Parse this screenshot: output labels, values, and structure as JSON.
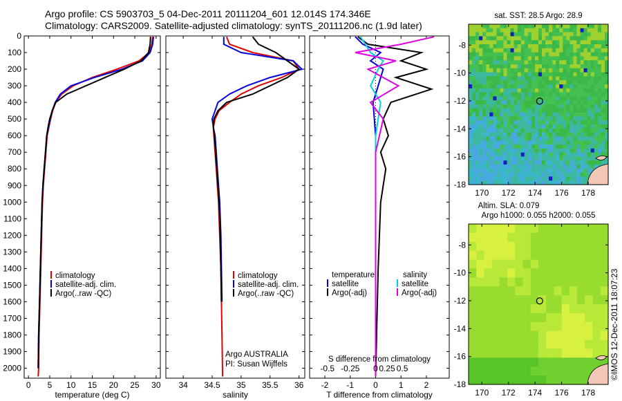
{
  "header": {
    "line1": "Argo profile: CS 5903703_5 04-Dec-2011 20111204_601 12.014S 174.346E",
    "line2": "Climatology: CARS2009. Satellite-adjusted climatology: synTS_20111206.nc (1.9d later)"
  },
  "chart_data": [
    {
      "type": "line",
      "panel": "temperature",
      "xlabel": "temperature (deg C)",
      "xlim": [
        -1,
        31
      ],
      "xticks": [
        0,
        5,
        10,
        15,
        20,
        25,
        30
      ],
      "ylim": [
        0,
        2060
      ],
      "yticks": [
        0,
        100,
        200,
        300,
        400,
        500,
        600,
        700,
        800,
        900,
        1000,
        1100,
        1200,
        1300,
        1400,
        1500,
        1600,
        1700,
        1800,
        1900,
        2000
      ],
      "legend": [
        "climatology",
        "satellite-adj. clim.",
        "Argo(..raw -QC)"
      ],
      "legend_placement": "lower-center",
      "series": [
        {
          "name": "climatology",
          "color": "#e00000",
          "x": [
            29.2,
            29.0,
            28.4,
            26.0,
            20.8,
            15.0,
            10.5,
            7.8,
            6.4,
            5.7,
            5.2,
            4.8,
            4.4,
            4.1,
            3.8,
            3.5,
            3.3,
            3.1,
            2.9,
            2.7,
            2.5,
            2.4,
            2.3
          ],
          "y": [
            5,
            50,
            100,
            150,
            200,
            250,
            300,
            350,
            400,
            450,
            500,
            550,
            600,
            700,
            800,
            900,
            1000,
            1200,
            1400,
            1600,
            1800,
            2000,
            2050
          ]
        },
        {
          "name": "satellite-adj. clim.",
          "color": "#0000e0",
          "x": [
            29.4,
            29.2,
            28.6,
            26.8,
            22.0,
            15.5,
            10.0,
            7.5,
            6.3,
            5.6,
            5.1,
            4.7,
            4.3,
            4.0,
            3.7,
            3.4,
            3.2,
            3.0,
            2.8,
            2.6,
            2.4,
            2.3
          ],
          "y": [
            5,
            50,
            100,
            150,
            200,
            250,
            300,
            350,
            400,
            450,
            500,
            550,
            600,
            700,
            800,
            900,
            1000,
            1200,
            1400,
            1600,
            1800,
            2000
          ]
        },
        {
          "name": "Argo(..raw -QC)",
          "color": "#000000",
          "x": [
            28.7,
            28.6,
            28.2,
            26.5,
            22.5,
            18.0,
            13.5,
            9.0,
            6.4,
            5.6,
            5.0,
            4.6,
            4.3,
            4.0,
            3.7,
            3.4,
            3.2,
            3.0,
            2.8,
            2.6,
            2.4,
            2.3
          ],
          "y": [
            5,
            50,
            100,
            150,
            200,
            250,
            300,
            350,
            400,
            450,
            500,
            550,
            600,
            700,
            800,
            900,
            1000,
            1200,
            1400,
            1600,
            1800,
            2000
          ]
        }
      ]
    },
    {
      "type": "line",
      "panel": "salinity",
      "xlabel": "salinity",
      "xlim": [
        33.7,
        36.1
      ],
      "xticks": [
        34,
        34.5,
        35,
        35.5,
        36
      ],
      "xtick_labels": [
        "34",
        "34.5",
        "35",
        "35.5",
        "36"
      ],
      "ylim": [
        0,
        2060
      ],
      "legend": [
        "climatology",
        "satellite-adj. clim.",
        "Argo(..raw -QC)"
      ],
      "legend_placement": "lower-center",
      "annotation": [
        "Argo AUSTRALIA",
        "PI: Susan Wijffels"
      ],
      "series": [
        {
          "name": "climatology",
          "color": "#e00000",
          "x": [
            34.75,
            34.8,
            35.2,
            35.9,
            36.0,
            35.7,
            35.3,
            35.0,
            34.8,
            34.62,
            34.55,
            34.52,
            34.53,
            34.55,
            34.57,
            34.59,
            34.61,
            34.63,
            34.65,
            34.66,
            34.67,
            34.68
          ],
          "y": [
            5,
            50,
            100,
            150,
            200,
            250,
            300,
            350,
            400,
            450,
            500,
            550,
            600,
            700,
            800,
            900,
            1000,
            1200,
            1400,
            1600,
            1800,
            2050
          ]
        },
        {
          "name": "satellite-adj. clim.",
          "color": "#0000e0",
          "x": [
            34.7,
            34.7,
            35.0,
            35.9,
            36.05,
            35.5,
            35.1,
            34.8,
            34.6,
            34.55,
            34.5,
            34.52,
            34.55,
            34.57,
            34.59,
            34.61,
            34.63,
            34.65,
            34.66,
            34.67
          ],
          "y": [
            5,
            50,
            100,
            150,
            200,
            250,
            300,
            350,
            400,
            450,
            500,
            550,
            600,
            700,
            800,
            900,
            1000,
            1200,
            1400,
            1600
          ]
        },
        {
          "name": "Argo(..raw -QC)",
          "color": "#000000",
          "x": [
            35.2,
            35.3,
            35.6,
            35.8,
            36.0,
            35.8,
            35.5,
            35.2,
            34.75,
            34.6,
            34.53,
            34.52,
            34.54,
            34.56,
            34.58,
            34.6,
            34.62,
            34.64,
            34.65,
            34.66
          ],
          "y": [
            5,
            50,
            100,
            150,
            200,
            250,
            300,
            350,
            400,
            450,
            500,
            550,
            600,
            700,
            800,
            900,
            1000,
            1200,
            1400,
            1600
          ]
        }
      ]
    },
    {
      "type": "line",
      "panel": "difference",
      "xlabel": "T difference from climatology",
      "xlabel_top": "S difference from climatology",
      "xlim": [
        -2.6,
        2.9
      ],
      "xticks": [
        -2,
        -1,
        0,
        1,
        2
      ],
      "sticks": [
        -0.5,
        -0.25,
        0,
        0.25,
        0.5
      ],
      "sticks_at_T": [
        -1.9,
        -1.0,
        0,
        0.45,
        1.05
      ],
      "ylim": [
        0,
        2060
      ],
      "legend_left_title": "temperature",
      "legend_right_title": "salinity",
      "legend_left": [
        "satellite",
        "Argo(-adj)"
      ],
      "legend_right": [
        "satellite",
        "Argo(-adj)"
      ],
      "series": [
        {
          "name": "temperature satellite",
          "color": "#0000e0",
          "x": [
            -0.8,
            -0.5,
            0.2,
            -0.2,
            0.3,
            0.1,
            -0.1,
            0.0,
            0.0,
            0.0,
            0.0,
            0.0,
            0.0
          ],
          "y": [
            5,
            50,
            100,
            150,
            200,
            300,
            400,
            600,
            800,
            1000,
            1400,
            1800,
            2050
          ]
        },
        {
          "name": "temperature Argo(-adj)",
          "color": "#000000",
          "x": [
            -0.7,
            -0.3,
            1.8,
            1.0,
            2.0,
            0.8,
            2.2,
            0.6,
            0.3,
            0.5,
            0.2,
            0.4,
            0.3,
            0.2,
            0.1,
            0.0
          ],
          "y": [
            5,
            50,
            100,
            150,
            200,
            250,
            320,
            400,
            500,
            600,
            700,
            800,
            900,
            1000,
            1400,
            2050
          ]
        },
        {
          "name": "salinity satellite",
          "color": "#00d0e0",
          "x": [
            -0.6,
            -0.4,
            -0.2,
            0.3,
            0.1,
            -0.2,
            0.2,
            0.0,
            0.0,
            0.0,
            0.0
          ],
          "y": [
            5,
            50,
            100,
            150,
            200,
            300,
            400,
            600,
            1000,
            1500,
            2050
          ]
        },
        {
          "name": "salinity Argo(-adj)",
          "color": "#e000e0",
          "x": [
            2.3,
            1.0,
            -0.8,
            0.8,
            -0.3,
            0.9,
            -0.2,
            0.3,
            0.0,
            0.0,
            0.0
          ],
          "y": [
            5,
            50,
            100,
            150,
            200,
            300,
            400,
            500,
            700,
            1000,
            2050
          ]
        }
      ]
    },
    {
      "type": "heatmap",
      "panel": "sst-map",
      "title": "sat. SST: 28.5  Argo: 28.9",
      "xlim": [
        169,
        179.5
      ],
      "ylim": [
        -18,
        -6.5
      ],
      "xticks": [
        170,
        172,
        174,
        176,
        178
      ],
      "yticks": [
        -8,
        -10,
        -12,
        -14,
        -16,
        -18
      ],
      "marker": {
        "lon": 174.346,
        "lat": -12.014
      }
    },
    {
      "type": "heatmap",
      "panel": "sla-map",
      "title_line1": "Altim. SLA: 0.079",
      "title_line2": "Argo h1000: 0.055 h2000: 0.055",
      "xlim": [
        169,
        179.5
      ],
      "ylim": [
        -18,
        -6.5
      ],
      "xticks": [
        170,
        172,
        174,
        176,
        178
      ],
      "yticks": [
        -8,
        -10,
        -12,
        -14,
        -16,
        -18
      ],
      "marker": {
        "lon": 174.346,
        "lat": -12.014
      }
    }
  ],
  "footer": {
    "credit": "©IMOS 12-Dec-2011 18:07:23"
  },
  "colors": {
    "climatology": "#e00000",
    "satellite": "#0000e0",
    "argo": "#000000",
    "sal_sat": "#00d0e0",
    "sal_argo": "#e000e0"
  }
}
